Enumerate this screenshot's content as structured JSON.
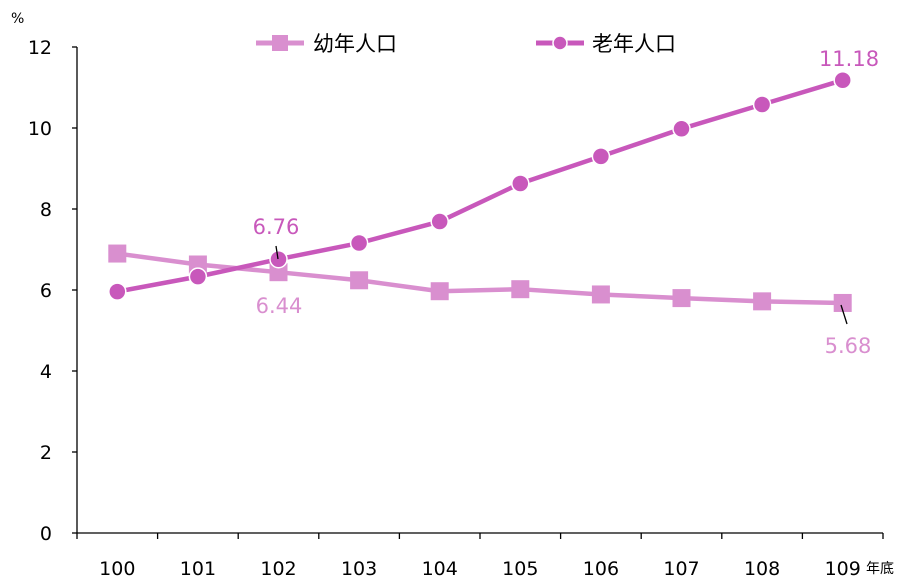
{
  "chart_data": {
    "type": "line",
    "ylabel": "%",
    "xlabel": "年底",
    "categories": [
      "100",
      "101",
      "102",
      "103",
      "104",
      "105",
      "106",
      "107",
      "108",
      "109"
    ],
    "ylim": [
      0,
      12
    ],
    "yticks": [
      "0",
      "2",
      "4",
      "6",
      "8",
      "10",
      "12"
    ],
    "grid": false,
    "legend_position": "top",
    "series": [
      {
        "name": "幼年人口",
        "color": "#d98fcf",
        "marker": "square",
        "values": [
          6.9,
          6.63,
          6.44,
          6.24,
          5.97,
          6.02,
          5.89,
          5.8,
          5.72,
          5.68
        ],
        "data_labels": [
          {
            "index": 2,
            "text": "6.44"
          },
          {
            "index": 9,
            "text": "5.68"
          }
        ]
      },
      {
        "name": "老年人口",
        "color": "#c858bb",
        "marker": "circle",
        "values": [
          5.96,
          6.33,
          6.76,
          7.16,
          7.69,
          8.63,
          9.3,
          9.98,
          10.58,
          11.18
        ],
        "data_labels": [
          {
            "index": 2,
            "text": "6.76"
          },
          {
            "index": 9,
            "text": "11.18"
          }
        ]
      }
    ]
  }
}
